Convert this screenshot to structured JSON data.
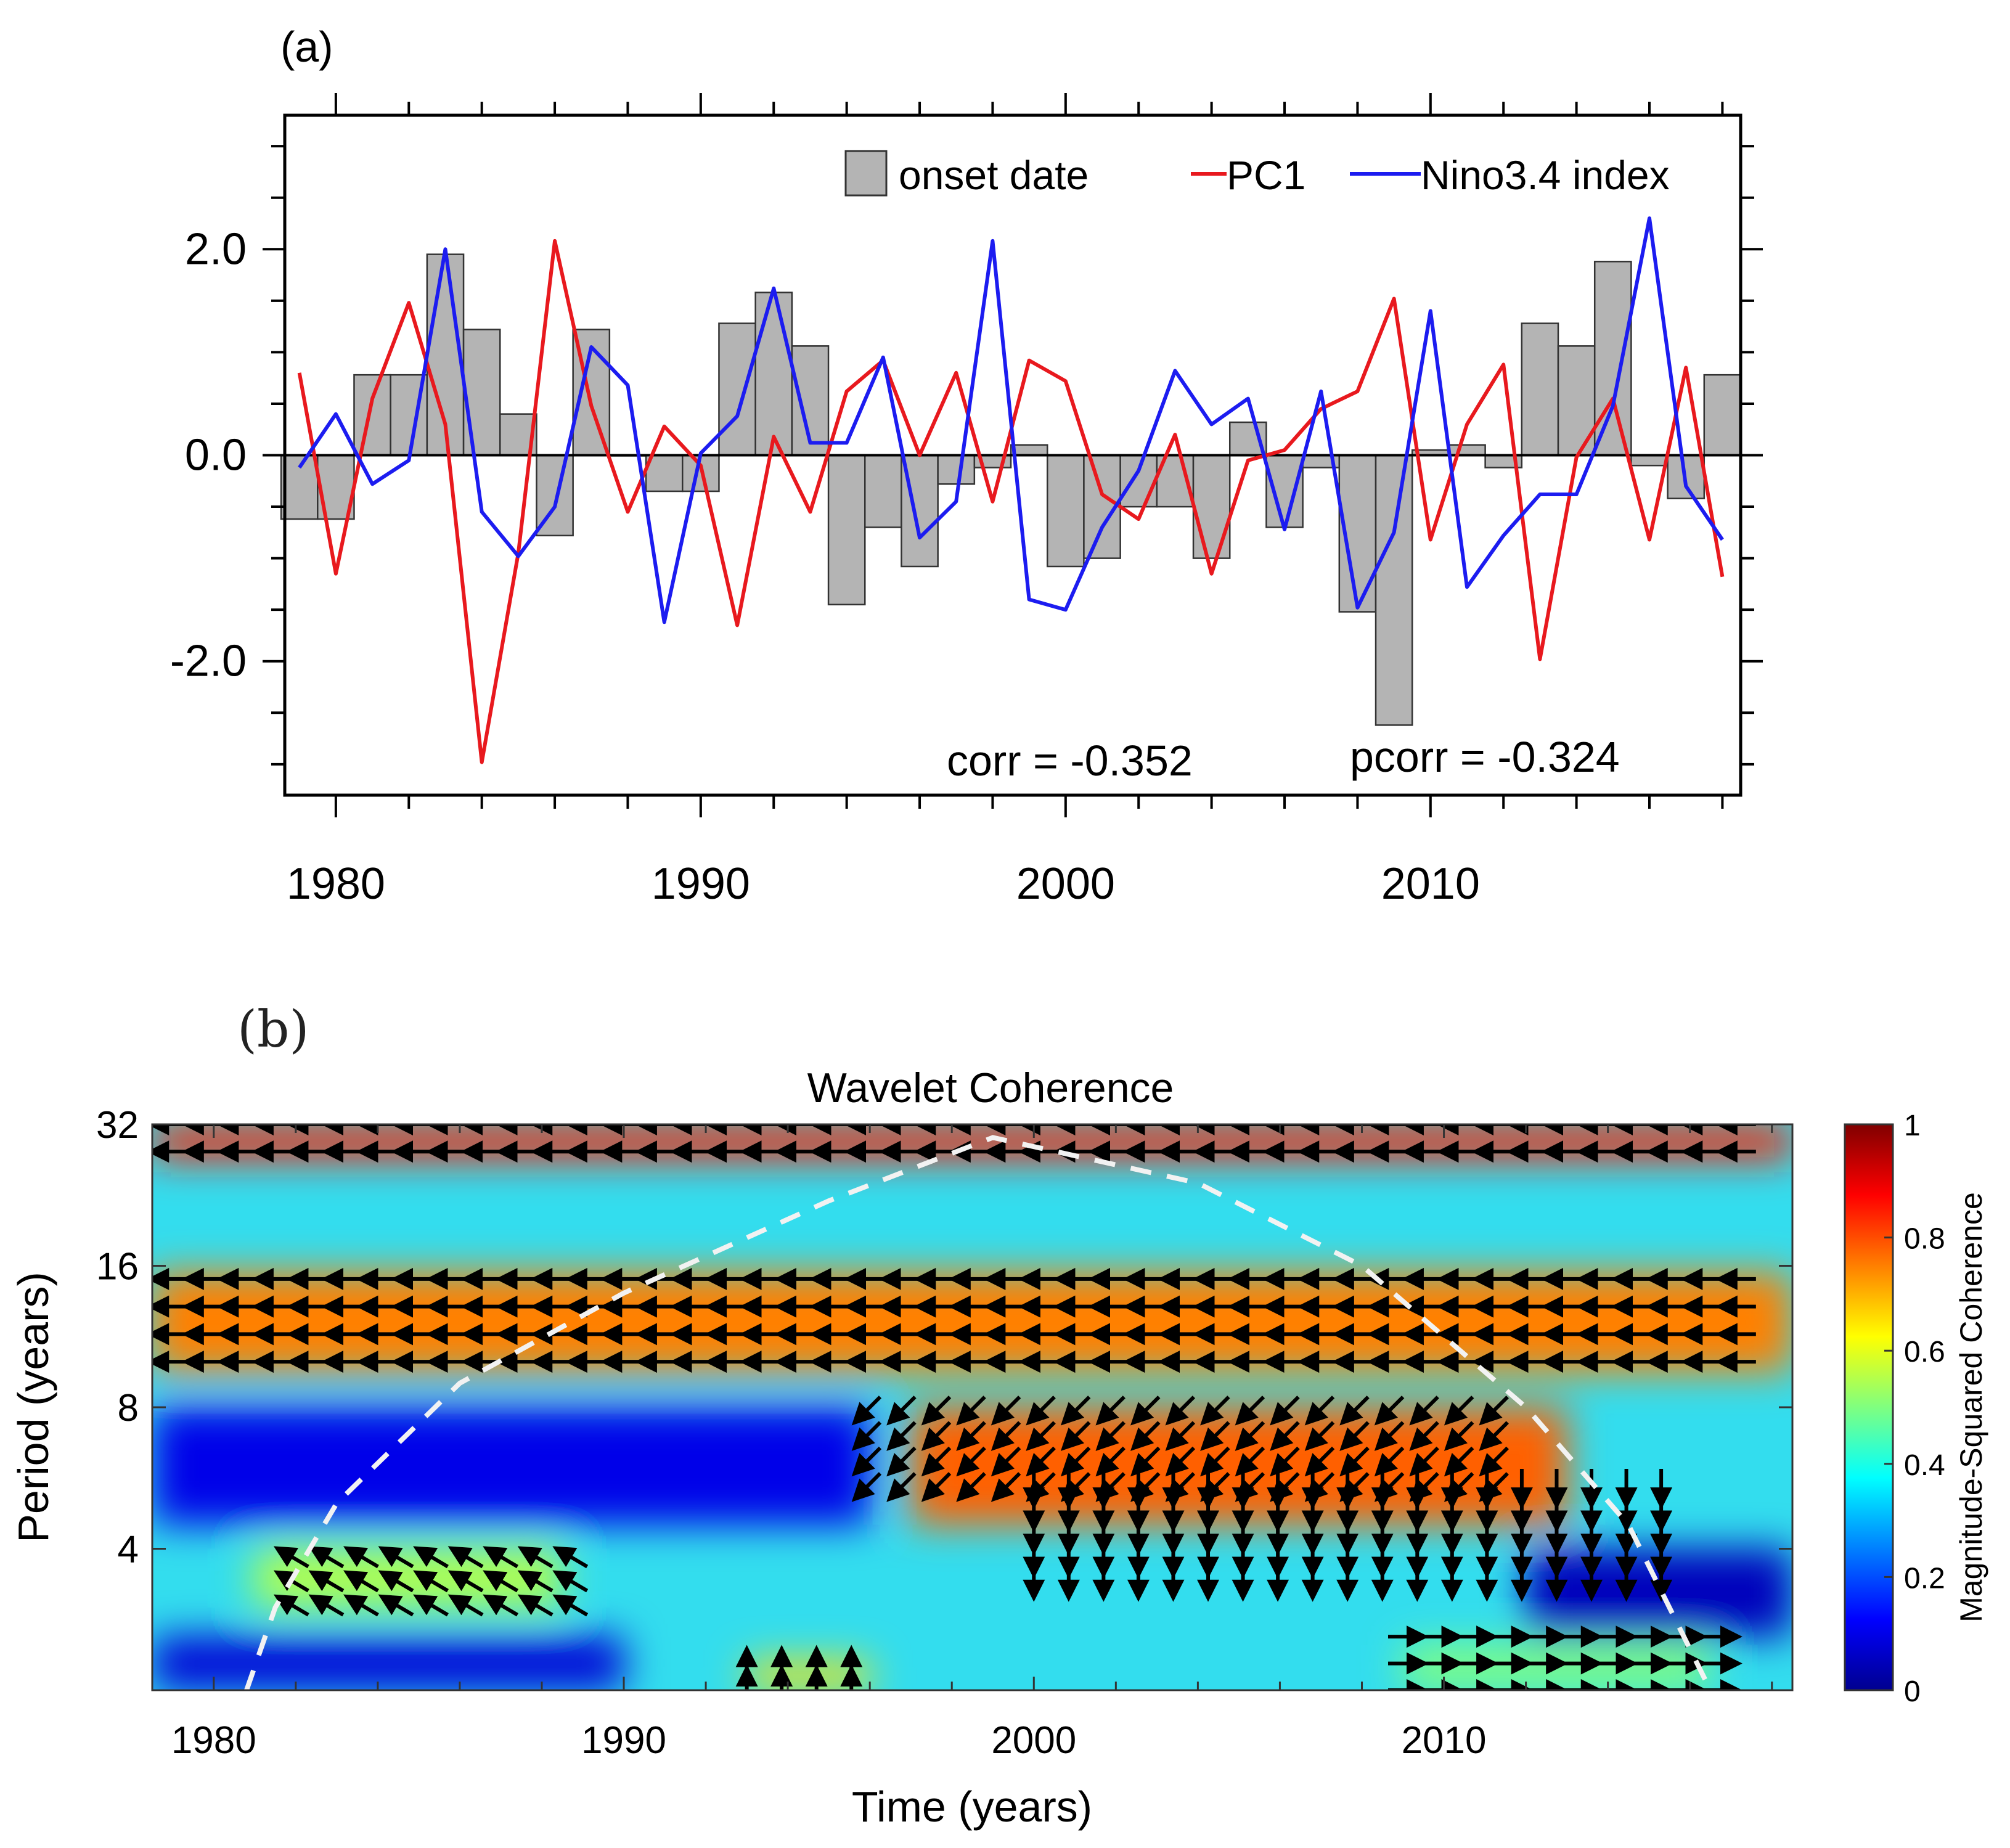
{
  "chart_data": [
    {
      "panel": "(a)",
      "type": "bar+line",
      "title": "",
      "xlabel": "",
      "ylabel": "",
      "xlim": [
        1978.6,
        2018.5
      ],
      "ylim": [
        -3.3,
        3.3
      ],
      "xticks": [
        1980,
        1990,
        2000,
        2010
      ],
      "xtick_labels": [
        "1980",
        "1990",
        "2000",
        "2010"
      ],
      "yticks": [
        -2.0,
        0.0,
        2.0
      ],
      "ytick_labels": [
        "-2.0",
        "0.0",
        "2.0"
      ],
      "years": [
        1979,
        1980,
        1981,
        1982,
        1983,
        1984,
        1985,
        1986,
        1987,
        1988,
        1989,
        1990,
        1991,
        1992,
        1993,
        1994,
        1995,
        1996,
        1997,
        1998,
        1999,
        2000,
        2001,
        2002,
        2003,
        2004,
        2005,
        2006,
        2007,
        2008,
        2009,
        2010,
        2011,
        2012,
        2013,
        2014,
        2015,
        2016,
        2017,
        2018
      ],
      "series": [
        {
          "name": "onset date",
          "type": "bar",
          "color": "#b4b4b4",
          "values": [
            -0.62,
            -0.62,
            0.78,
            0.78,
            1.95,
            1.22,
            0.4,
            -0.78,
            1.22,
            0.0,
            -0.35,
            -0.35,
            1.28,
            1.58,
            1.06,
            -1.45,
            -0.7,
            -1.08,
            -0.28,
            -0.12,
            0.1,
            -1.08,
            -1.0,
            -0.5,
            -0.5,
            -1.0,
            0.32,
            -0.7,
            -0.12,
            -1.52,
            -2.62,
            0.05,
            0.1,
            -0.12,
            1.28,
            1.06,
            1.88,
            -0.1,
            -0.42,
            0.78
          ]
        },
        {
          "name": "PC1",
          "type": "line",
          "color": "#e8191e",
          "values": [
            0.8,
            -1.15,
            0.55,
            1.48,
            0.3,
            -2.98,
            -0.95,
            2.08,
            0.48,
            -0.55,
            0.28,
            -0.1,
            -1.65,
            0.18,
            -0.55,
            0.62,
            0.92,
            0.0,
            0.8,
            -0.45,
            0.92,
            0.72,
            -0.38,
            -0.62,
            0.2,
            -1.15,
            -0.05,
            0.05,
            0.45,
            0.62,
            1.52,
            -0.82,
            0.3,
            0.88,
            -1.98,
            -0.02,
            0.55,
            -0.82,
            0.85,
            -1.18
          ]
        },
        {
          "name": "Nino3.4 index",
          "type": "line",
          "color": "#1c1cf0",
          "values": [
            -0.12,
            0.4,
            -0.28,
            -0.05,
            2.0,
            -0.55,
            -0.98,
            -0.5,
            1.05,
            0.68,
            -1.62,
            0.02,
            0.38,
            1.62,
            0.12,
            0.12,
            0.95,
            -0.8,
            -0.45,
            2.08,
            -1.4,
            -1.5,
            -0.7,
            -0.15,
            0.82,
            0.3,
            0.55,
            -0.72,
            0.62,
            -1.48,
            -0.75,
            1.4,
            -1.28,
            -0.78,
            -0.38,
            -0.38,
            0.48,
            2.3,
            -0.3,
            -0.82
          ]
        }
      ],
      "legend": {
        "placement": "top-right",
        "entries": [
          "onset date",
          "PC1",
          "Nino3.4 index"
        ]
      },
      "annotations": [
        "corr = -0.352",
        "pcorr = -0.324"
      ]
    },
    {
      "panel": "(b)",
      "type": "heatmap",
      "title": "Wavelet Coherence",
      "xlabel": "Time (years)",
      "ylabel": "Period (years)",
      "xlim": [
        1978.5,
        2018.5
      ],
      "ylim_period": [
        2,
        32
      ],
      "yscale": "log2",
      "xticks": [
        1980,
        1990,
        2000,
        2010
      ],
      "xtick_labels": [
        "1980",
        "1990",
        "2000",
        "2010"
      ],
      "yticks": [
        4,
        8,
        16,
        32
      ],
      "ytick_labels": [
        "4",
        "8",
        "16",
        "32"
      ],
      "colorbar": {
        "label": "Magnitude-Squared Coherence",
        "range": [
          0,
          1
        ],
        "ticks": [
          0,
          0.2,
          0.4,
          0.6,
          0.8,
          1
        ],
        "tick_labels": [
          "0",
          "0.2",
          "0.4",
          "0.6",
          "0.8",
          "1"
        ]
      },
      "coherence_regions": [
        {
          "years": [
            1978.5,
            2018.5
          ],
          "period": [
            27,
            32
          ],
          "coherence": 0.85
        },
        {
          "years": [
            1978.5,
            2018.5
          ],
          "period": [
            9.5,
            15.5
          ],
          "coherence": 0.75
        },
        {
          "years": [
            1997,
            2013
          ],
          "period": [
            4.5,
            8
          ],
          "coherence": 0.78
        },
        {
          "years": [
            1981,
            1988.5
          ],
          "period": [
            3,
            4
          ],
          "coherence": 0.55
        },
        {
          "years": [
            1978.5,
            1996
          ],
          "period": [
            4.5,
            8
          ],
          "coherence": 0.1
        },
        {
          "years": [
            1978.5,
            1990
          ],
          "period": [
            2,
            2.6
          ],
          "coherence": 0.08
        },
        {
          "years": [
            2012,
            2018.5
          ],
          "period": [
            2.6,
            4
          ],
          "coherence": 0.05
        },
        {
          "years": [
            1993,
            1996
          ],
          "period": [
            2,
            2.3
          ],
          "coherence": 0.65
        },
        {
          "years": [
            2009,
            2016.5
          ],
          "period": [
            2,
            2.5
          ],
          "coherence": 0.5
        }
      ],
      "phase_arrow_regions": [
        {
          "years": [
            1979,
            2018
          ],
          "period": [
            28,
            32
          ],
          "direction": "left"
        },
        {
          "years": [
            1979,
            2018
          ],
          "period": [
            10,
            15
          ],
          "direction": "left"
        },
        {
          "years": [
            1996,
            2012
          ],
          "period": [
            5.5,
            8
          ],
          "direction": "down-left"
        },
        {
          "years": [
            2000,
            2016
          ],
          "period": [
            3.5,
            5.5
          ],
          "direction": "down"
        },
        {
          "years": [
            1982,
            1989
          ],
          "period": [
            3,
            3.8
          ],
          "direction": "up-left"
        },
        {
          "years": [
            1993,
            1996
          ],
          "period": [
            2,
            2.2
          ],
          "direction": "up"
        },
        {
          "years": [
            2009,
            2017
          ],
          "period": [
            2,
            2.6
          ],
          "direction": "right"
        }
      ],
      "cone_of_influence": {
        "style": "white dashed",
        "points": [
          [
            1980.8,
            2
          ],
          [
            1981.5,
            3
          ],
          [
            1983,
            5
          ],
          [
            1986,
            9
          ],
          [
            1990,
            14
          ],
          [
            1995,
            22
          ],
          [
            1999,
            30
          ],
          [
            2004,
            24
          ],
          [
            2008,
            16
          ],
          [
            2012,
            8
          ],
          [
            2014.5,
            4.5
          ],
          [
            2016.5,
            2
          ]
        ]
      }
    }
  ]
}
